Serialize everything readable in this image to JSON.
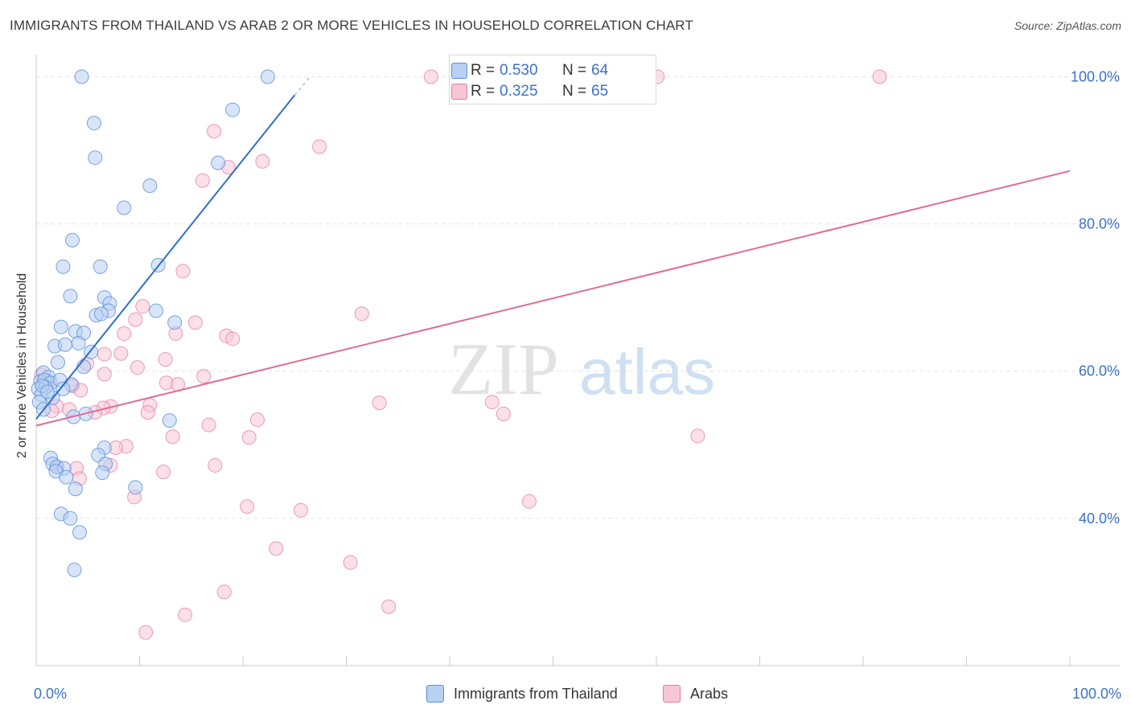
{
  "title": "IMMIGRANTS FROM THAILAND VS ARAB 2 OR MORE VEHICLES IN HOUSEHOLD CORRELATION CHART",
  "source": "Source: ZipAtlas.com",
  "watermark": {
    "zip": "ZIP",
    "atlas": "atlas"
  },
  "colors": {
    "blue": "#5b8fd8",
    "blue_fill": "#b8d0f2",
    "blue_line": "#2f6fc9",
    "pink": "#e77ba2",
    "pink_fill": "#f7c6d6",
    "pink_line": "#e06b97",
    "axis_text": "#3a72c8"
  },
  "legend_top": {
    "rows": [
      {
        "r_label": "R =",
        "r_value": "0.530",
        "n_label": "N =",
        "n_value": "64"
      },
      {
        "r_label": "R =",
        "r_value": "0.325",
        "n_label": "N =",
        "n_value": "65"
      }
    ]
  },
  "legend_bottom": {
    "series1": "Immigrants from Thailand",
    "series2": "Arabs"
  },
  "chart_data": {
    "type": "scatter",
    "title": "IMMIGRANTS FROM THAILAND VS ARAB 2 OR MORE VEHICLES IN HOUSEHOLD CORRELATION CHART",
    "xlabel": "",
    "ylabel": "2 or more Vehicles in Household",
    "xlim": [
      0,
      100
    ],
    "ylim": [
      20,
      103
    ],
    "x_tick_labels": [
      "0.0%",
      "100.0%"
    ],
    "y_ticks": [
      40,
      60,
      80,
      100
    ],
    "y_tick_labels": [
      "40.0%",
      "60.0%",
      "80.0%",
      "100.0%"
    ],
    "grid": true,
    "series": [
      {
        "name": "Immigrants from Thailand",
        "r": 0.53,
        "n": 64,
        "trend": {
          "x": [
            0,
            25.0
          ],
          "y": [
            53.5,
            97.5
          ],
          "dashed_to": [
            26.5,
            100.0
          ]
        },
        "points": [
          [
            4.4,
            100
          ],
          [
            22.4,
            100
          ],
          [
            5.6,
            93.7
          ],
          [
            19.0,
            95.5
          ],
          [
            5.7,
            89.0
          ],
          [
            17.6,
            88.3
          ],
          [
            11.0,
            85.2
          ],
          [
            8.5,
            82.2
          ],
          [
            3.5,
            77.8
          ],
          [
            2.6,
            74.2
          ],
          [
            6.2,
            74.2
          ],
          [
            11.8,
            74.4
          ],
          [
            3.3,
            70.2
          ],
          [
            6.6,
            70.0
          ],
          [
            7.1,
            69.2
          ],
          [
            7.0,
            68.2
          ],
          [
            5.8,
            67.6
          ],
          [
            6.3,
            67.8
          ],
          [
            11.6,
            68.2
          ],
          [
            13.4,
            66.6
          ],
          [
            2.4,
            66.0
          ],
          [
            3.8,
            65.4
          ],
          [
            4.6,
            65.2
          ],
          [
            1.8,
            63.4
          ],
          [
            2.8,
            63.6
          ],
          [
            4.1,
            63.8
          ],
          [
            5.3,
            62.6
          ],
          [
            2.1,
            61.2
          ],
          [
            4.6,
            60.6
          ],
          [
            0.7,
            59.8
          ],
          [
            1.2,
            59.2
          ],
          [
            0.4,
            58.6
          ],
          [
            0.8,
            58.8
          ],
          [
            1.4,
            58.4
          ],
          [
            2.3,
            58.8
          ],
          [
            3.4,
            58.2
          ],
          [
            0.2,
            57.6
          ],
          [
            0.9,
            57.8
          ],
          [
            0.5,
            56.8
          ],
          [
            1.6,
            56.4
          ],
          [
            0.3,
            55.8
          ],
          [
            0.7,
            54.8
          ],
          [
            3.6,
            53.8
          ],
          [
            4.8,
            54.2
          ],
          [
            12.9,
            53.3
          ],
          [
            6.6,
            49.6
          ],
          [
            6.0,
            48.6
          ],
          [
            1.4,
            48.2
          ],
          [
            1.6,
            47.4
          ],
          [
            2.0,
            47.0
          ],
          [
            2.7,
            46.8
          ],
          [
            6.7,
            47.4
          ],
          [
            1.9,
            46.4
          ],
          [
            6.4,
            46.2
          ],
          [
            2.9,
            45.6
          ],
          [
            3.8,
            44.0
          ],
          [
            9.6,
            44.2
          ],
          [
            2.4,
            40.6
          ],
          [
            3.3,
            40.0
          ],
          [
            4.2,
            38.1
          ],
          [
            3.7,
            33.0
          ],
          [
            0.6,
            58.0
          ],
          [
            1.1,
            57.2
          ],
          [
            2.6,
            57.6
          ]
        ]
      },
      {
        "name": "Arabs",
        "r": 0.325,
        "n": 65,
        "trend": {
          "x": [
            0,
            100
          ],
          "y": [
            52.6,
            87.2
          ]
        },
        "points": [
          [
            38.2,
            100
          ],
          [
            47.0,
            100
          ],
          [
            60.1,
            100
          ],
          [
            81.6,
            100
          ],
          [
            17.2,
            92.6
          ],
          [
            27.4,
            90.5
          ],
          [
            21.9,
            88.5
          ],
          [
            18.6,
            87.7
          ],
          [
            16.1,
            85.9
          ],
          [
            14.2,
            73.6
          ],
          [
            10.3,
            68.8
          ],
          [
            9.6,
            67.0
          ],
          [
            31.5,
            67.8
          ],
          [
            15.4,
            66.6
          ],
          [
            8.5,
            65.1
          ],
          [
            13.5,
            65.1
          ],
          [
            18.4,
            64.8
          ],
          [
            19.0,
            64.4
          ],
          [
            6.6,
            62.3
          ],
          [
            8.2,
            62.4
          ],
          [
            12.5,
            61.6
          ],
          [
            4.9,
            61.0
          ],
          [
            6.6,
            59.6
          ],
          [
            16.2,
            59.3
          ],
          [
            12.6,
            58.4
          ],
          [
            13.7,
            58.2
          ],
          [
            3.5,
            58.0
          ],
          [
            4.3,
            57.4
          ],
          [
            7.2,
            55.2
          ],
          [
            6.5,
            55.0
          ],
          [
            11.0,
            55.4
          ],
          [
            33.2,
            55.7
          ],
          [
            44.1,
            55.8
          ],
          [
            2.0,
            55.2
          ],
          [
            3.2,
            54.8
          ],
          [
            1.5,
            54.6
          ],
          [
            10.8,
            54.4
          ],
          [
            5.7,
            54.4
          ],
          [
            45.2,
            54.2
          ],
          [
            21.4,
            53.4
          ],
          [
            16.7,
            52.7
          ],
          [
            13.2,
            51.1
          ],
          [
            20.6,
            51.0
          ],
          [
            64.0,
            51.2
          ],
          [
            8.7,
            49.8
          ],
          [
            7.7,
            49.6
          ],
          [
            7.2,
            47.2
          ],
          [
            17.3,
            47.2
          ],
          [
            2.0,
            47.0
          ],
          [
            3.9,
            46.8
          ],
          [
            12.3,
            46.3
          ],
          [
            4.2,
            45.4
          ],
          [
            9.5,
            42.9
          ],
          [
            47.7,
            42.3
          ],
          [
            20.4,
            41.6
          ],
          [
            25.6,
            41.1
          ],
          [
            23.2,
            35.9
          ],
          [
            30.4,
            34.0
          ],
          [
            18.2,
            30.0
          ],
          [
            34.1,
            28.0
          ],
          [
            14.4,
            26.9
          ],
          [
            10.6,
            24.5
          ],
          [
            0.5,
            59.5
          ],
          [
            1.2,
            58.6
          ],
          [
            9.8,
            60.5
          ]
        ]
      }
    ]
  }
}
